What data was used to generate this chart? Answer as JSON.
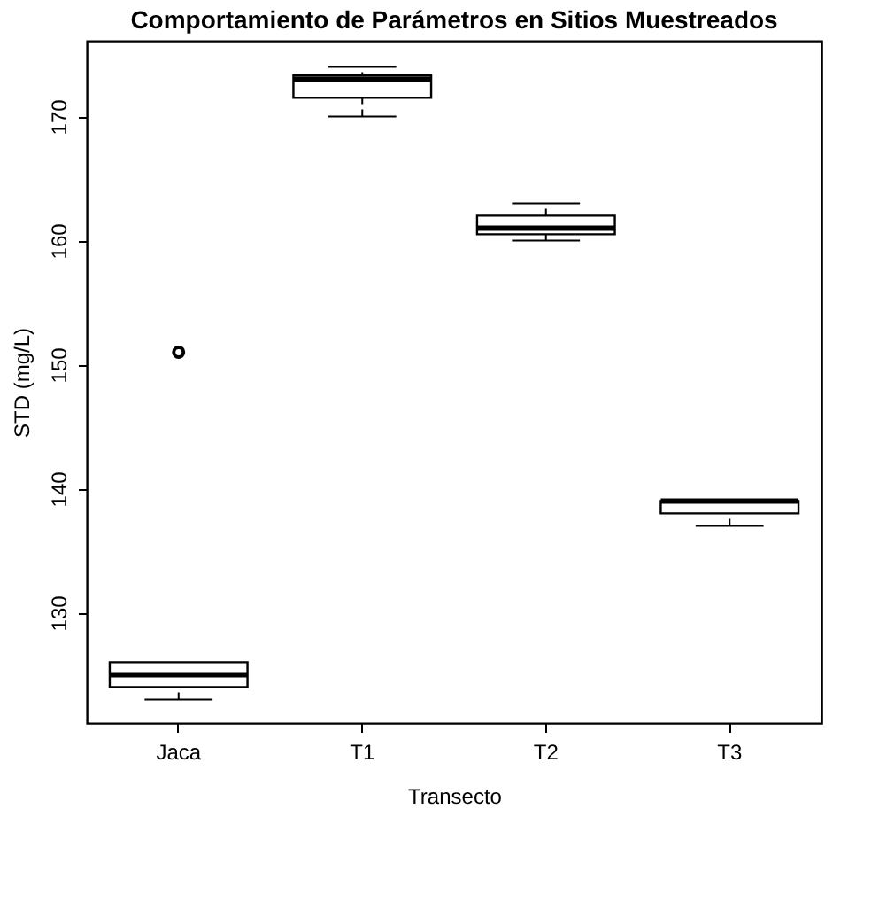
{
  "chart_data": {
    "type": "box",
    "title": "Comportamiento de Parámetros en Sitios Muestreados",
    "xlabel": "Transecto",
    "ylabel": "STD (mg/L)",
    "categories": [
      "Jaca",
      "T1",
      "T2",
      "T3"
    ],
    "boxes": [
      {
        "low": 123,
        "q1": 124,
        "median": 125,
        "q3": 126,
        "high": 126,
        "outliers": [
          151
        ]
      },
      {
        "low": 170,
        "q1": 171.5,
        "median": 173,
        "q3": 173.3,
        "high": 174
      },
      {
        "low": 160,
        "q1": 160.5,
        "median": 161,
        "q3": 162,
        "high": 163
      },
      {
        "low": 137,
        "q1": 138,
        "median": 139,
        "q3": 139,
        "high": 139
      }
    ],
    "ylim": [
      121.1,
      176.1
    ],
    "yticks": [
      130,
      140,
      150,
      160,
      170
    ],
    "grid": false
  }
}
